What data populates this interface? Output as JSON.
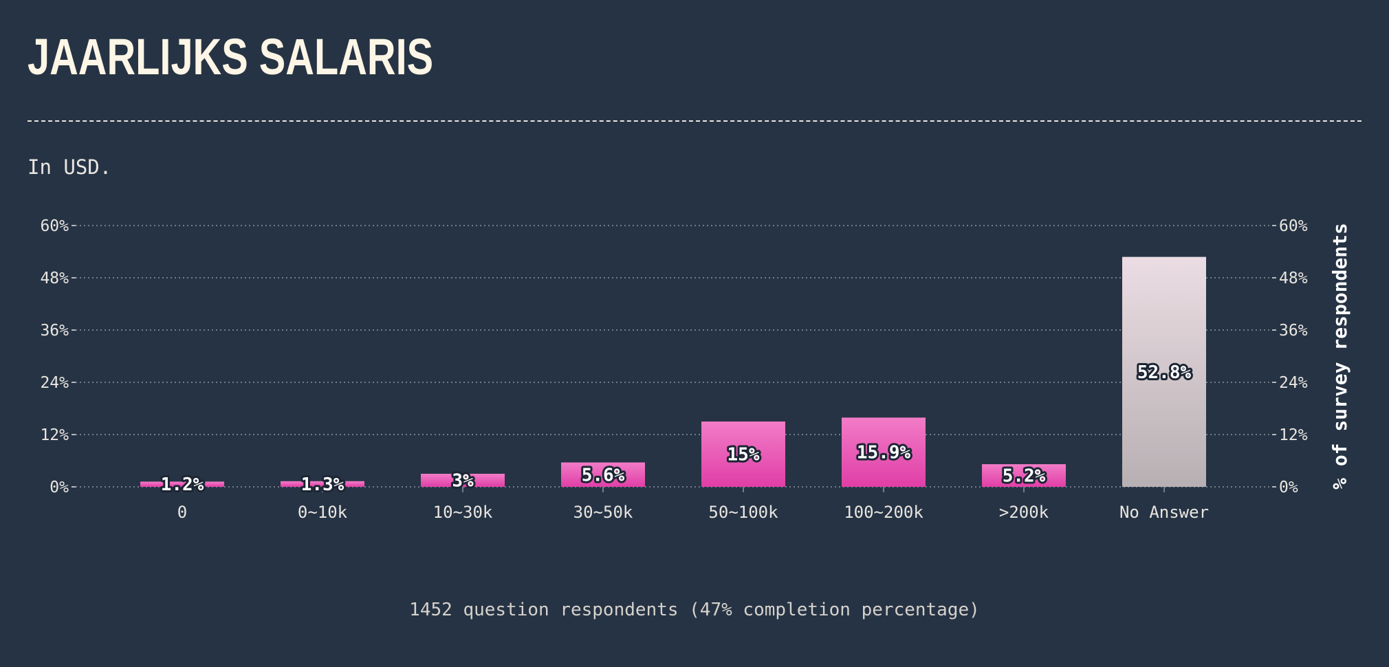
{
  "page": {
    "title": "JAARLIJKS SALARIS",
    "subtitle": "In USD.",
    "footer": "1452 question respondents (47% completion percentage)"
  },
  "colors": {
    "background": "#263344",
    "bar_top": "#f27cc8",
    "bar_bottom": "#e03ea6",
    "no_answer_top": "#ebdde3",
    "no_answer_bottom": "#b7b0b3",
    "grid": "#8c96a3",
    "text": "#e9e6e1"
  },
  "chart_data": {
    "type": "bar",
    "categories": [
      "0",
      "0~10k",
      "10~30k",
      "30~50k",
      "50~100k",
      "100~200k",
      ">200k",
      "No Answer"
    ],
    "values": [
      1.2,
      1.3,
      3,
      5.6,
      15,
      15.9,
      5.2,
      52.8
    ],
    "value_labels": [
      "1.2%",
      "1.3%",
      "3%",
      "5.6%",
      "15%",
      "15.9%",
      "5.2%",
      "52.8%"
    ],
    "ylim": [
      0,
      60
    ],
    "yticks": [
      "0%",
      "12%",
      "24%",
      "36%",
      "48%",
      "60%"
    ],
    "ylabel": "% of survey respondents",
    "xlabel": "",
    "grid": true
  }
}
